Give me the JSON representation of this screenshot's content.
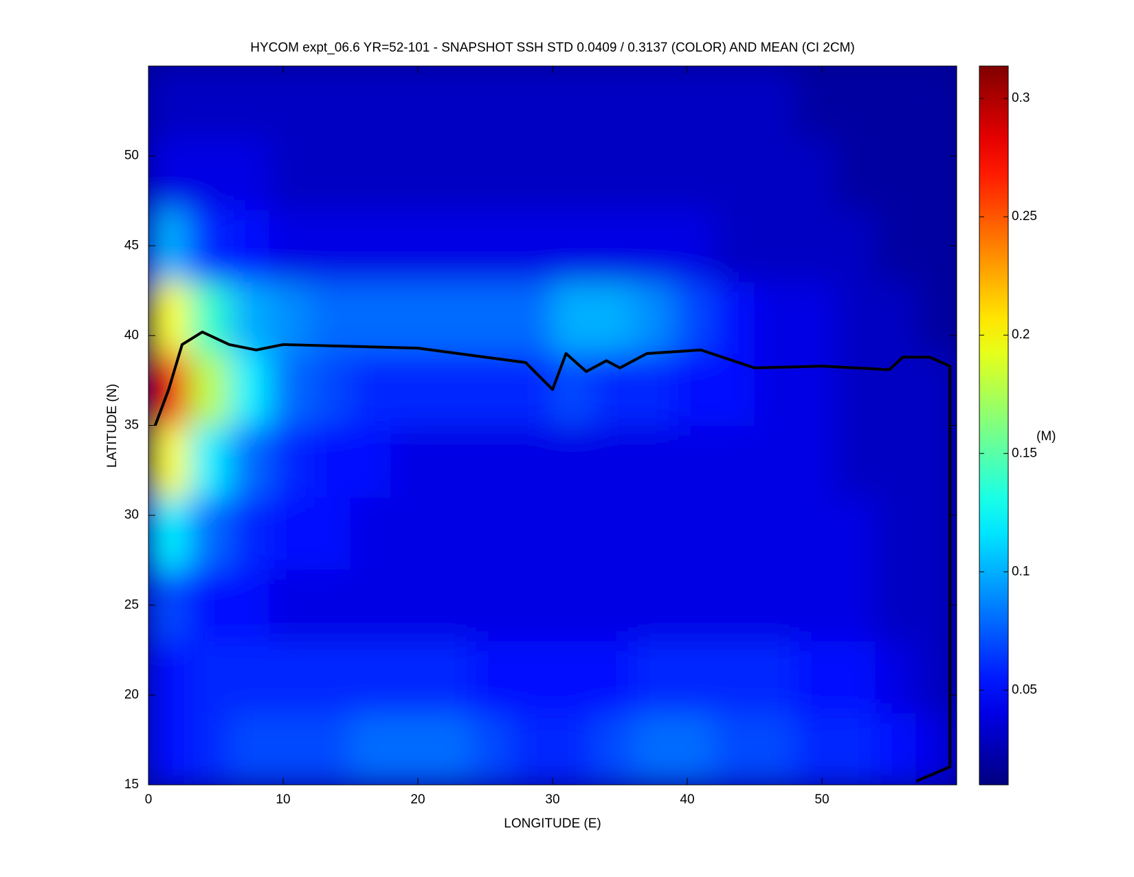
{
  "chart_data": {
    "type": "heatmap",
    "title": "HYCOM expt_06.6 YR=52-101 - SNAPSHOT SSH STD 0.0409 / 0.3137 (COLOR) AND MEAN (CI 2CM)",
    "x_label": "LONGITUDE (E)",
    "y_label": "LATITUDE (N)",
    "colorbar_label": "(M)",
    "xlim": [
      0,
      60
    ],
    "ylim": [
      15,
      55
    ],
    "xticks": [
      0,
      10,
      20,
      30,
      40,
      50
    ],
    "yticks": [
      15,
      20,
      25,
      30,
      35,
      40,
      45,
      50
    ],
    "clim": [
      0.01,
      0.3137
    ],
    "cticks": [
      0.05,
      0.1,
      0.15,
      0.2,
      0.25,
      0.3
    ],
    "colormap": "jet",
    "x": [
      1.5,
      4.5,
      7.5,
      10.5,
      13.5,
      16.5,
      19.5,
      22.5,
      25.5,
      28.5,
      31.5,
      34.5,
      37.5,
      40.5,
      43.5,
      46.5,
      49.5,
      52.5,
      55.5,
      58.5
    ],
    "y": [
      17,
      21,
      25,
      29,
      33,
      37,
      41,
      45,
      49,
      53
    ],
    "z": [
      [
        0.05,
        0.06,
        0.07,
        0.07,
        0.07,
        0.08,
        0.08,
        0.08,
        0.07,
        0.06,
        0.06,
        0.07,
        0.08,
        0.08,
        0.07,
        0.07,
        0.06,
        0.06,
        0.05,
        0.04
      ],
      [
        0.05,
        0.06,
        0.06,
        0.06,
        0.06,
        0.06,
        0.06,
        0.06,
        0.05,
        0.05,
        0.05,
        0.05,
        0.06,
        0.06,
        0.06,
        0.06,
        0.05,
        0.05,
        0.04,
        0.03
      ],
      [
        0.07,
        0.05,
        0.05,
        0.04,
        0.04,
        0.04,
        0.04,
        0.04,
        0.04,
        0.04,
        0.04,
        0.04,
        0.04,
        0.04,
        0.04,
        0.04,
        0.04,
        0.04,
        0.03,
        0.03
      ],
      [
        0.12,
        0.08,
        0.06,
        0.05,
        0.05,
        0.04,
        0.04,
        0.04,
        0.04,
        0.04,
        0.04,
        0.04,
        0.04,
        0.04,
        0.04,
        0.04,
        0.04,
        0.04,
        0.03,
        0.03
      ],
      [
        0.2,
        0.12,
        0.08,
        0.06,
        0.05,
        0.05,
        0.04,
        0.04,
        0.04,
        0.04,
        0.04,
        0.04,
        0.04,
        0.04,
        0.04,
        0.04,
        0.04,
        0.03,
        0.03,
        0.03
      ],
      [
        0.28,
        0.18,
        0.12,
        0.08,
        0.07,
        0.06,
        0.06,
        0.06,
        0.06,
        0.06,
        0.07,
        0.06,
        0.06,
        0.05,
        0.05,
        0.04,
        0.04,
        0.03,
        0.03,
        0.03
      ],
      [
        0.2,
        0.14,
        0.1,
        0.09,
        0.08,
        0.08,
        0.08,
        0.08,
        0.08,
        0.08,
        0.1,
        0.1,
        0.09,
        0.07,
        0.05,
        0.04,
        0.04,
        0.03,
        0.03,
        0.02
      ],
      [
        0.1,
        0.06,
        0.05,
        0.04,
        0.04,
        0.04,
        0.04,
        0.04,
        0.04,
        0.04,
        0.04,
        0.04,
        0.04,
        0.04,
        0.03,
        0.03,
        0.03,
        0.03,
        0.02,
        0.02
      ],
      [
        0.04,
        0.04,
        0.04,
        0.03,
        0.03,
        0.03,
        0.03,
        0.03,
        0.03,
        0.03,
        0.03,
        0.03,
        0.03,
        0.03,
        0.03,
        0.03,
        0.03,
        0.02,
        0.02,
        0.02
      ],
      [
        0.03,
        0.03,
        0.03,
        0.03,
        0.03,
        0.03,
        0.03,
        0.03,
        0.03,
        0.03,
        0.03,
        0.03,
        0.03,
        0.03,
        0.03,
        0.03,
        0.02,
        0.02,
        0.02,
        0.02
      ]
    ],
    "contour": {
      "color": "#000000",
      "x": [
        0.5,
        1.5,
        2.5,
        4,
        6,
        8,
        10,
        15,
        20,
        25,
        28,
        30,
        31,
        32.5,
        34,
        35,
        37,
        41,
        45,
        50,
        55,
        56,
        58,
        59.5,
        59.5,
        59.5,
        57
      ],
      "y": [
        35,
        37,
        39.5,
        40.2,
        39.5,
        39.2,
        39.5,
        39.4,
        39.3,
        38.8,
        38.5,
        37,
        39,
        38,
        38.6,
        38.2,
        39,
        39.2,
        38.2,
        38.3,
        38.1,
        38.8,
        38.8,
        38.3,
        20,
        16,
        15.2
      ]
    }
  }
}
